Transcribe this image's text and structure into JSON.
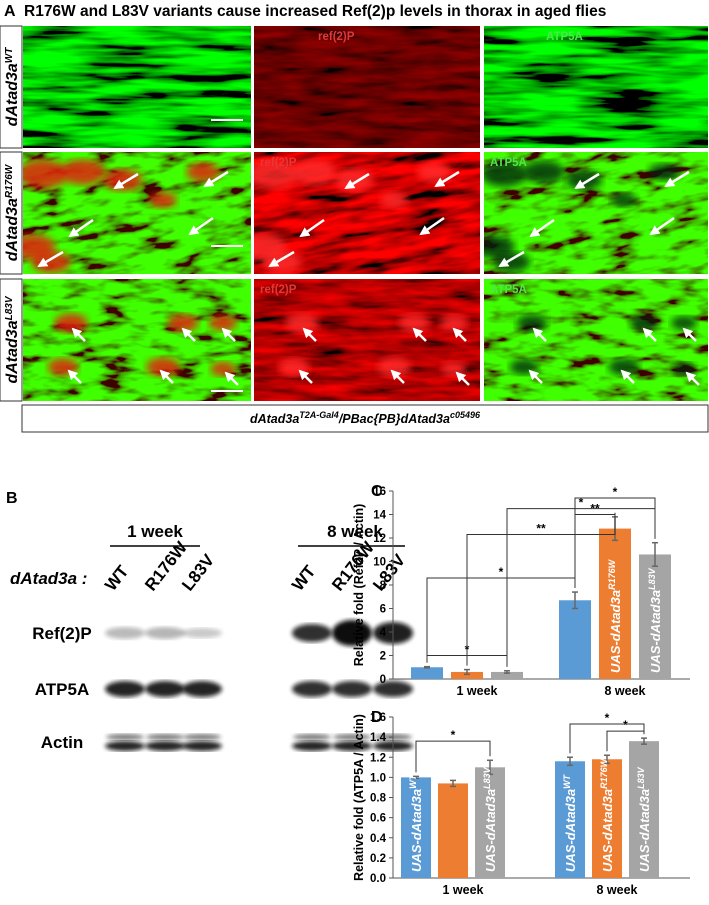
{
  "panel_a": {
    "letter": "A",
    "title": "R176W and L83V variants cause increased Ref(2)p levels in thorax in aged flies",
    "rows": [
      {
        "label": "dAtad3a",
        "superscript": "WT"
      },
      {
        "label": "dAtad3a",
        "superscript": "R176W"
      },
      {
        "label": "dAtad3a",
        "superscript": "L83V"
      }
    ],
    "channel_labels": [
      "ref(2)P",
      "ATP5A"
    ],
    "genotype": {
      "base": "dAtad3a",
      "superscript_1": "T2A-Gal4",
      "middle": "/PBac{PB}dAtad3a",
      "superscript_2": "c05496"
    }
  },
  "panel_b": {
    "letter": "B",
    "groups": [
      "1 week",
      "8 week"
    ],
    "row_label": "dAtad3a :",
    "lanes": [
      "WT",
      "R176W",
      "L83V"
    ],
    "bands": [
      "Ref(2)P",
      "ATP5A",
      "Actin"
    ]
  },
  "chart_data": [
    {
      "type": "bar",
      "letter": "C",
      "ylabel": "Relative fold (Ref2P / Actin)",
      "categories": [
        "1 week",
        "8 week"
      ],
      "ylim": [
        0,
        16
      ],
      "yticks": [
        0,
        2,
        4,
        6,
        8,
        10,
        12,
        14,
        16
      ],
      "series": [
        {
          "name": "UAS-dAtad3a",
          "superscript": "WT",
          "color": "#5b9bd5",
          "values": [
            1.0,
            6.7
          ],
          "errors": [
            0.05,
            0.7
          ]
        },
        {
          "name": "UAS-dAtad3a",
          "superscript": "R176W",
          "color": "#ed7d31",
          "values": [
            0.6,
            12.8
          ],
          "errors": [
            0.2,
            1.0
          ]
        },
        {
          "name": "UAS-dAtad3a",
          "superscript": "L83V",
          "color": "#a5a5a5",
          "values": [
            0.6,
            10.6
          ],
          "errors": [
            0.1,
            1.0
          ]
        }
      ],
      "significance": [
        {
          "label": "*",
          "from": [
            0,
            0
          ],
          "to": [
            0,
            2
          ]
        },
        {
          "label": "*",
          "from": [
            0,
            0
          ],
          "to": [
            1,
            0
          ]
        },
        {
          "label": "**",
          "from": [
            0,
            1
          ],
          "to": [
            1,
            1
          ]
        },
        {
          "label": "**",
          "from": [
            1,
            0
          ],
          "to": [
            1,
            1
          ]
        },
        {
          "label": "*",
          "from": [
            0,
            2
          ],
          "to": [
            1,
            2
          ]
        },
        {
          "label": "*",
          "from": [
            1,
            0
          ],
          "to": [
            1,
            2
          ]
        }
      ]
    },
    {
      "type": "bar",
      "letter": "D",
      "ylabel": "Relative fold (ATP5A / Actin)",
      "categories": [
        "1 week",
        "8 week"
      ],
      "ylim": [
        0,
        1.6
      ],
      "yticks": [
        {
          "value": 0,
          "label": "0.0"
        },
        0.2,
        0.4,
        0.6,
        0.8,
        {
          "value": 1,
          "label": "1.0"
        },
        1.2,
        1.4,
        1.6
      ],
      "series": [
        {
          "name": "UAS-dAtad3a",
          "superscript": "WT",
          "color": "#5b9bd5",
          "values": [
            1.0,
            1.16
          ],
          "errors": [
            0.01,
            0.04
          ]
        },
        {
          "name": "UAS-dAtad3a",
          "superscript": "R176W",
          "color": "#ed7d31",
          "values": [
            0.94,
            1.18
          ],
          "errors": [
            0.03,
            0.04
          ]
        },
        {
          "name": "UAS-dAtad3a",
          "superscript": "L83V",
          "color": "#a5a5a5",
          "values": [
            1.1,
            1.36
          ],
          "errors": [
            0.07,
            0.03
          ]
        }
      ],
      "significance": [
        {
          "label": "*",
          "from": [
            0,
            0
          ],
          "to": [
            0,
            2
          ]
        },
        {
          "label": "*",
          "from": [
            1,
            1
          ],
          "to": [
            1,
            2
          ]
        },
        {
          "label": "*",
          "from": [
            1,
            0
          ],
          "to": [
            1,
            2
          ]
        }
      ]
    }
  ]
}
